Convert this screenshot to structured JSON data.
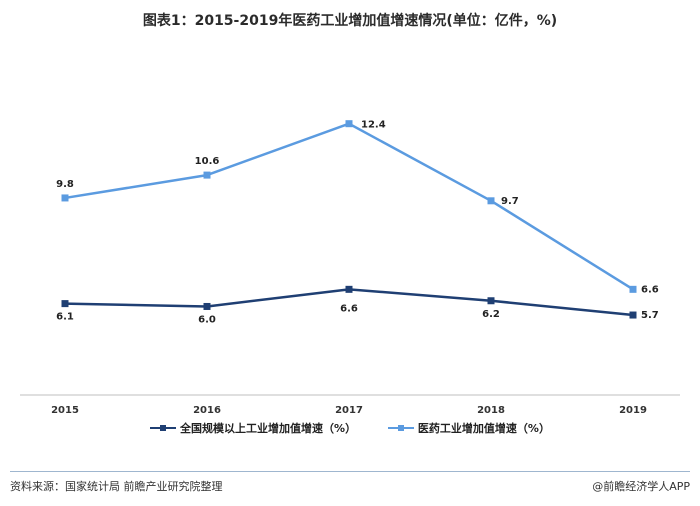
{
  "title": "图表1：2015-2019年医药工业增加值增速情况(单位：亿件，%)",
  "chart_data": {
    "type": "line",
    "categories": [
      "2015",
      "2016",
      "2017",
      "2018",
      "2019"
    ],
    "series": [
      {
        "name": "全国规模以上工业增加值增速（%）",
        "values": [
          6.1,
          6.0,
          6.6,
          6.2,
          5.7
        ],
        "color": "#1f3f73",
        "labels": [
          "6.1",
          "6.0",
          "6.6",
          "6.2",
          "5.7"
        ]
      },
      {
        "name": "医药工业增加值增速（%）",
        "values": [
          9.8,
          10.6,
          12.4,
          9.7,
          6.6
        ],
        "color": "#5b9be0",
        "labels": [
          "9.8",
          "10.6",
          "12.4",
          "9.7",
          "6.6"
        ]
      }
    ],
    "ylim": [
      2.9,
      14.0
    ],
    "grid": false,
    "legend_position": "bottom"
  },
  "footer": {
    "source": "资料来源：国家统计局  前瞻产业研究院整理",
    "brand": "@前瞻经济学人APP"
  }
}
